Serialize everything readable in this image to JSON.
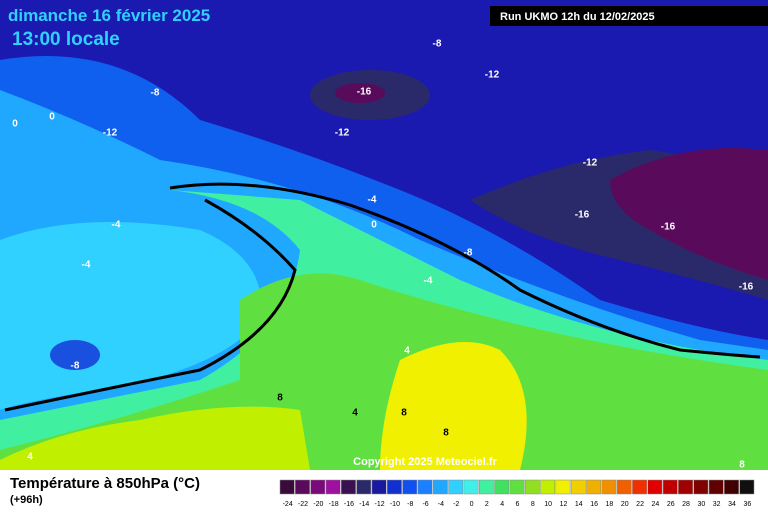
{
  "header": {
    "title": "dimanche 16 février 2025",
    "time": "13:00 locale",
    "run": "Run UKMO 12h du 12/02/2025"
  },
  "map": {
    "contour_labels": [
      "-8",
      "-12",
      "-16",
      "-8",
      "0",
      "0",
      "-12",
      "-12",
      "-12",
      "-4",
      "0",
      "-16",
      "-16",
      "-4",
      "-4",
      "-8",
      "-4",
      "-16",
      "-8",
      "4",
      "8",
      "4",
      "8",
      "8",
      "4",
      "8"
    ],
    "copyright": "Copyright 2025 Meteociel.fr"
  },
  "footer": {
    "parameter": "Température à 850hPa (°C)",
    "lead": "(+96h)"
  },
  "scale": {
    "values": [
      -24,
      -22,
      -20,
      -18,
      -16,
      -14,
      -12,
      -10,
      -8,
      -6,
      -4,
      -2,
      0,
      2,
      4,
      6,
      8,
      10,
      12,
      14,
      16,
      18,
      20,
      22,
      24,
      26,
      28,
      30,
      32,
      34,
      36
    ],
    "colors": [
      "#3a0a3a",
      "#5a0a5a",
      "#7a0a7a",
      "#a010a0",
      "#3a1050",
      "#2a2a6a",
      "#1a1aa0",
      "#1030d0",
      "#1050f0",
      "#1a80ff",
      "#20a8ff",
      "#30d0ff",
      "#40f0e8",
      "#40f0a0",
      "#40e060",
      "#60e040",
      "#90e020",
      "#c0f000",
      "#f0f000",
      "#f0d000",
      "#f0b000",
      "#f09000",
      "#f06000",
      "#f03000",
      "#e00000",
      "#c00000",
      "#a00000",
      "#800000",
      "#600000",
      "#400000",
      "#101010"
    ]
  }
}
